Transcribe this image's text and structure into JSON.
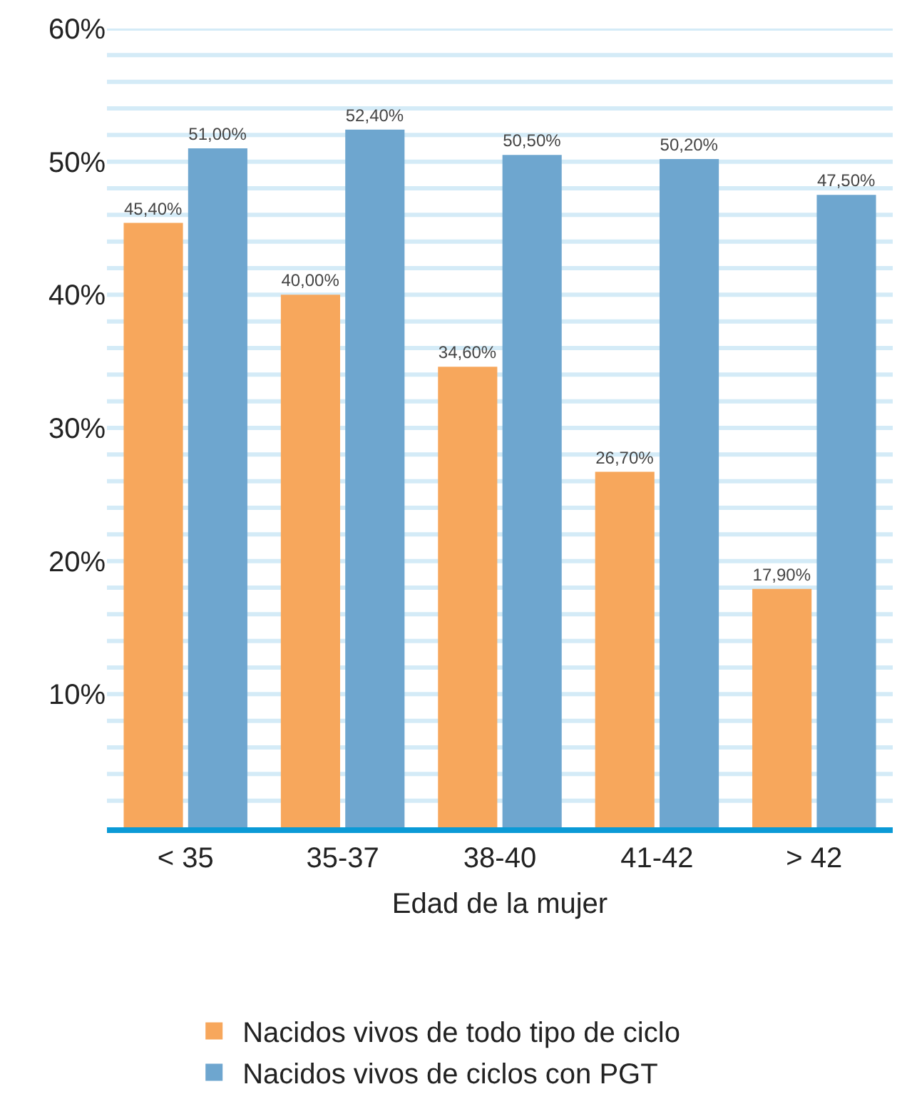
{
  "chart_data": {
    "type": "bar",
    "xlabel": "Edad de la mujer",
    "categories": [
      "< 35",
      "35-37",
      "38-40",
      "41-42",
      "> 42"
    ],
    "series": [
      {
        "name": "Nacidos vivos de todo tipo de ciclo",
        "color": "#f7a75c",
        "values": [
          45.4,
          40.0,
          34.6,
          26.7,
          17.9
        ],
        "value_labels": [
          "45,40%",
          "40,00%",
          "34,60%",
          "26,70%",
          "17,90%"
        ]
      },
      {
        "name": "Nacidos vivos de ciclos con PGT",
        "color": "#6ea6cf",
        "values": [
          51.0,
          52.4,
          50.5,
          50.2,
          47.5
        ],
        "value_labels": [
          "51,00%",
          "52,40%",
          "50,50%",
          "50,20%",
          "47,50%"
        ]
      }
    ],
    "ylim": [
      0,
      60
    ],
    "yticks": [
      {
        "value": 2,
        "label": null
      },
      {
        "value": 4,
        "label": null
      },
      {
        "value": 6,
        "label": null
      },
      {
        "value": 8,
        "label": null
      },
      {
        "value": 10,
        "label": "10%"
      },
      {
        "value": 12,
        "label": null
      },
      {
        "value": 14,
        "label": null
      },
      {
        "value": 16,
        "label": null
      },
      {
        "value": 18,
        "label": null
      },
      {
        "value": 20,
        "label": "20%"
      },
      {
        "value": 22,
        "label": null
      },
      {
        "value": 24,
        "label": null
      },
      {
        "value": 26,
        "label": null
      },
      {
        "value": 28,
        "label": null
      },
      {
        "value": 30,
        "label": "30%"
      },
      {
        "value": 32,
        "label": null
      },
      {
        "value": 34,
        "label": null
      },
      {
        "value": 36,
        "label": null
      },
      {
        "value": 38,
        "label": null
      },
      {
        "value": 40,
        "label": "40%"
      },
      {
        "value": 42,
        "label": null
      },
      {
        "value": 44,
        "label": null
      },
      {
        "value": 46,
        "label": null
      },
      {
        "value": 48,
        "label": null
      },
      {
        "value": 50,
        "label": "50%"
      },
      {
        "value": 52,
        "label": null
      },
      {
        "value": 54,
        "label": null
      },
      {
        "value": 56,
        "label": null
      },
      {
        "value": 58,
        "label": null
      },
      {
        "value": 60,
        "label": "60%"
      }
    ],
    "grid": "y",
    "legend": "bottom"
  }
}
